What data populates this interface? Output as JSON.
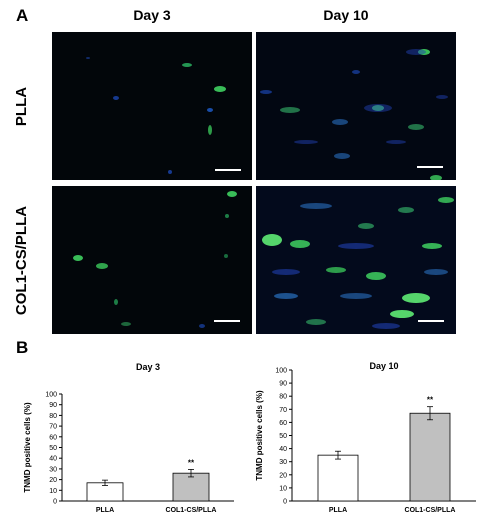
{
  "figure": {
    "panel_a_label": "A",
    "panel_b_label": "B",
    "columns": [
      "Day 3",
      "Day 10"
    ],
    "rows": [
      "PLLA",
      "COL1-CS/PLLA"
    ]
  },
  "chart_data": [
    {
      "type": "bar",
      "title": "Day 3",
      "xlabel": "",
      "ylabel": "TNMD positive cells (%)",
      "categories": [
        "PLLA",
        "COL1-CS/PLLA"
      ],
      "values": [
        17,
        26
      ],
      "errors": [
        2.5,
        3.5
      ],
      "significance": [
        "",
        "**"
      ],
      "bar_colors": [
        "#ffffff",
        "#c0c0c0"
      ],
      "ylim": [
        0,
        100
      ],
      "yticks": [
        0,
        10,
        20,
        30,
        40,
        50,
        60,
        70,
        80,
        90,
        100
      ],
      "grid": false
    },
    {
      "type": "bar",
      "title": "Day 10",
      "xlabel": "",
      "ylabel": "TNMD positive cells (%)",
      "categories": [
        "PLLA",
        "COL1-CS/PLLA"
      ],
      "values": [
        35,
        67
      ],
      "errors": [
        3,
        5
      ],
      "significance": [
        "",
        "**"
      ],
      "bar_colors": [
        "#ffffff",
        "#c0c0c0"
      ],
      "ylim": [
        0,
        100
      ],
      "yticks": [
        0,
        10,
        20,
        30,
        40,
        50,
        60,
        70,
        80,
        90,
        100
      ],
      "grid": false
    }
  ]
}
